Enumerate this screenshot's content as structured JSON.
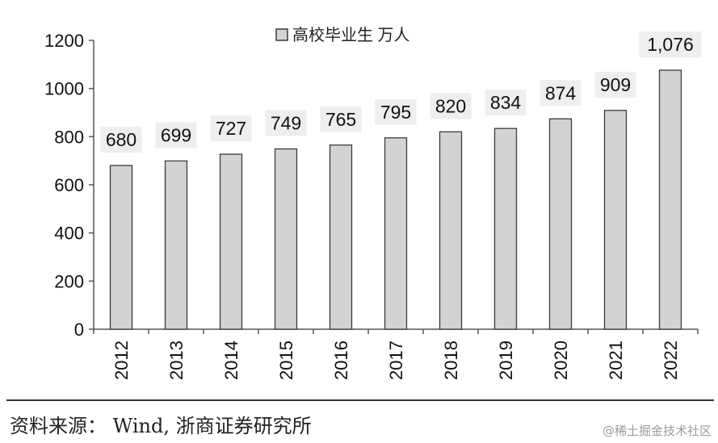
{
  "chart_data": {
    "type": "bar",
    "legend": {
      "label": "高校毕业生 万人",
      "placement": "top-center"
    },
    "categories": [
      "2012",
      "2013",
      "2014",
      "2015",
      "2016",
      "2017",
      "2018",
      "2019",
      "2020",
      "2021",
      "2022"
    ],
    "values": [
      680,
      699,
      727,
      749,
      765,
      795,
      820,
      834,
      874,
      909,
      1076
    ],
    "data_labels": [
      "680",
      "699",
      "727",
      "749",
      "765",
      "795",
      "820",
      "834",
      "874",
      "909",
      "1,076"
    ],
    "ylim": [
      0,
      1200
    ],
    "yticks": [
      "0",
      "200",
      "400",
      "600",
      "800",
      "1000",
      "1200"
    ],
    "grid": false,
    "colors": {
      "bar_fill": "#d3d3d3",
      "bar_stroke": "#3a3a3a",
      "label_bg": "#eeeeee"
    }
  },
  "footer": {
    "source": "资料来源： Wind, 浙商证券研究所",
    "watermark": "@稀土掘金技术社区"
  }
}
